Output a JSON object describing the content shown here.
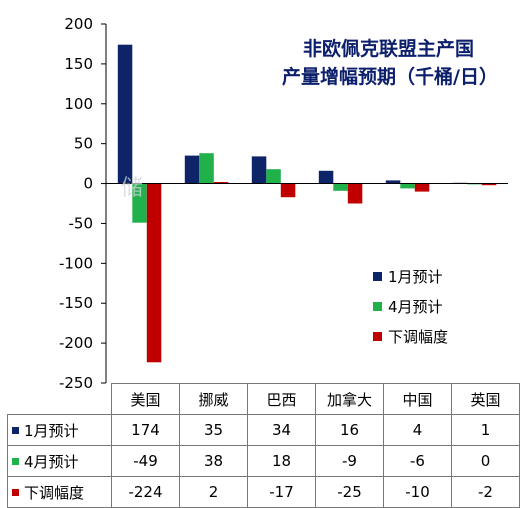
{
  "chart_data": {
    "type": "bar",
    "title_line1": "非欧佩克联盟主产国",
    "title_line2": "产量增幅预期（千桶/日）",
    "categories": [
      "美国",
      "挪威",
      "巴西",
      "加拿大",
      "中国",
      "英国"
    ],
    "series": [
      {
        "name": "1月预计",
        "values": [
          174,
          35,
          34,
          16,
          4,
          1
        ],
        "color": "#0d2568"
      },
      {
        "name": "4月预计",
        "values": [
          -49,
          38,
          18,
          -9,
          -6,
          0
        ],
        "color": "#21b14a"
      },
      {
        "name": "下调幅度",
        "values": [
          -224,
          2,
          -17,
          -25,
          -10,
          -2
        ],
        "color": "#c00000"
      }
    ],
    "ylim": [
      -250,
      200
    ],
    "yticks": [
      "200",
      "150",
      "100",
      "50",
      "0",
      "-50",
      "-100",
      "-150",
      "-200",
      "-250"
    ],
    "grid": false,
    "legend_position": "right-middle"
  },
  "table": {
    "rows": [
      {
        "label": "1月预计",
        "cells": [
          "174",
          "35",
          "34",
          "16",
          "4",
          "1"
        ]
      },
      {
        "label": "4月预计",
        "cells": [
          "-49",
          "38",
          "18",
          "-9",
          "-6",
          "0"
        ]
      },
      {
        "label": "下调幅度",
        "cells": [
          "-224",
          "2",
          "-17",
          "-25",
          "-10",
          "-2"
        ]
      }
    ]
  },
  "watermark": "储"
}
